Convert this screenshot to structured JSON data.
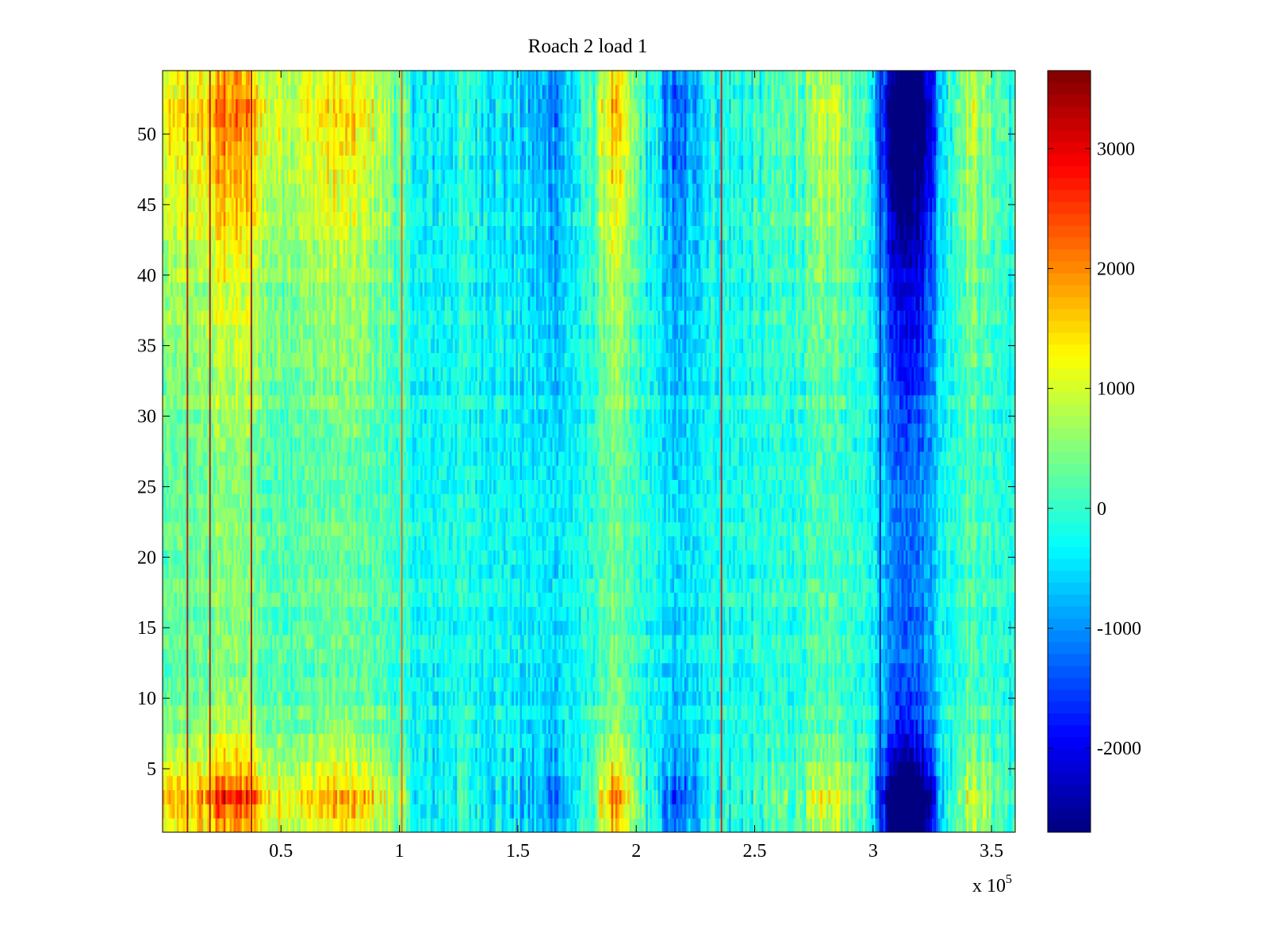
{
  "chart_data": {
    "type": "heatmap",
    "title": "Roach 2 load 1",
    "xlabel": "",
    "ylabel": "",
    "x_multiplier_label": "x 10",
    "x_multiplier_exponent": "5",
    "xlim": [
      0,
      3.6
    ],
    "ylim": [
      0.5,
      54.5
    ],
    "x_ticks": [
      0.5,
      1,
      1.5,
      2,
      2.5,
      3,
      3.5
    ],
    "x_tick_labels": [
      "0.5",
      "1",
      "1.5",
      "2",
      "2.5",
      "3",
      "3.5"
    ],
    "y_ticks": [
      5,
      10,
      15,
      20,
      25,
      30,
      35,
      40,
      45,
      50
    ],
    "y_tick_labels": [
      "5",
      "10",
      "15",
      "20",
      "25",
      "30",
      "35",
      "40",
      "45",
      "50"
    ],
    "rows": 54,
    "columns": 420,
    "colormap": "jet",
    "color_range": [
      -2700,
      3650
    ],
    "colorbar_ticks": [
      -2000,
      -1000,
      0,
      1000,
      2000,
      3000
    ],
    "colorbar_tick_labels": [
      "-2000",
      "-1000",
      "0",
      "1000",
      "2000",
      "3000"
    ],
    "column_profile": [
      {
        "x": 0.0,
        "value": 650
      },
      {
        "x": 0.2,
        "value": 900
      },
      {
        "x": 0.25,
        "value": 1350
      },
      {
        "x": 0.35,
        "value": 1200
      },
      {
        "x": 0.45,
        "value": 550
      },
      {
        "x": 0.6,
        "value": 650
      },
      {
        "x": 0.75,
        "value": 850
      },
      {
        "x": 0.9,
        "value": 600
      },
      {
        "x": 1.0,
        "value": 150
      },
      {
        "x": 1.1,
        "value": -450
      },
      {
        "x": 1.25,
        "value": -150
      },
      {
        "x": 1.4,
        "value": -300
      },
      {
        "x": 1.65,
        "value": -750
      },
      {
        "x": 1.8,
        "value": -100
      },
      {
        "x": 1.9,
        "value": 1000
      },
      {
        "x": 2.0,
        "value": 150
      },
      {
        "x": 2.18,
        "value": -1050
      },
      {
        "x": 2.3,
        "value": -200
      },
      {
        "x": 2.5,
        "value": -150
      },
      {
        "x": 2.7,
        "value": 150
      },
      {
        "x": 2.85,
        "value": 500
      },
      {
        "x": 3.0,
        "value": -350
      },
      {
        "x": 3.1,
        "value": -2350
      },
      {
        "x": 3.2,
        "value": -2200
      },
      {
        "x": 3.3,
        "value": -300
      },
      {
        "x": 3.4,
        "value": 500
      },
      {
        "x": 3.6,
        "value": -150
      }
    ],
    "row_profile": [
      {
        "y": 1,
        "factor": 1.4
      },
      {
        "y": 3,
        "factor": 1.9
      },
      {
        "y": 5,
        "factor": 1.2
      },
      {
        "y": 8,
        "factor": 0.7
      },
      {
        "y": 12,
        "factor": 0.5
      },
      {
        "y": 25,
        "factor": 0.45
      },
      {
        "y": 40,
        "factor": 0.9
      },
      {
        "y": 52,
        "factor": 1.6
      },
      {
        "y": 54,
        "factor": 1.3
      }
    ],
    "column_lines": [
      {
        "x": 0.105,
        "value": 3300
      },
      {
        "x": 0.2,
        "value": 3300
      },
      {
        "x": 0.375,
        "value": 3300
      },
      {
        "x": 1.01,
        "value": 2300
      },
      {
        "x": 2.36,
        "value": 3000
      },
      {
        "x": 3.03,
        "value": -2400
      }
    ]
  }
}
